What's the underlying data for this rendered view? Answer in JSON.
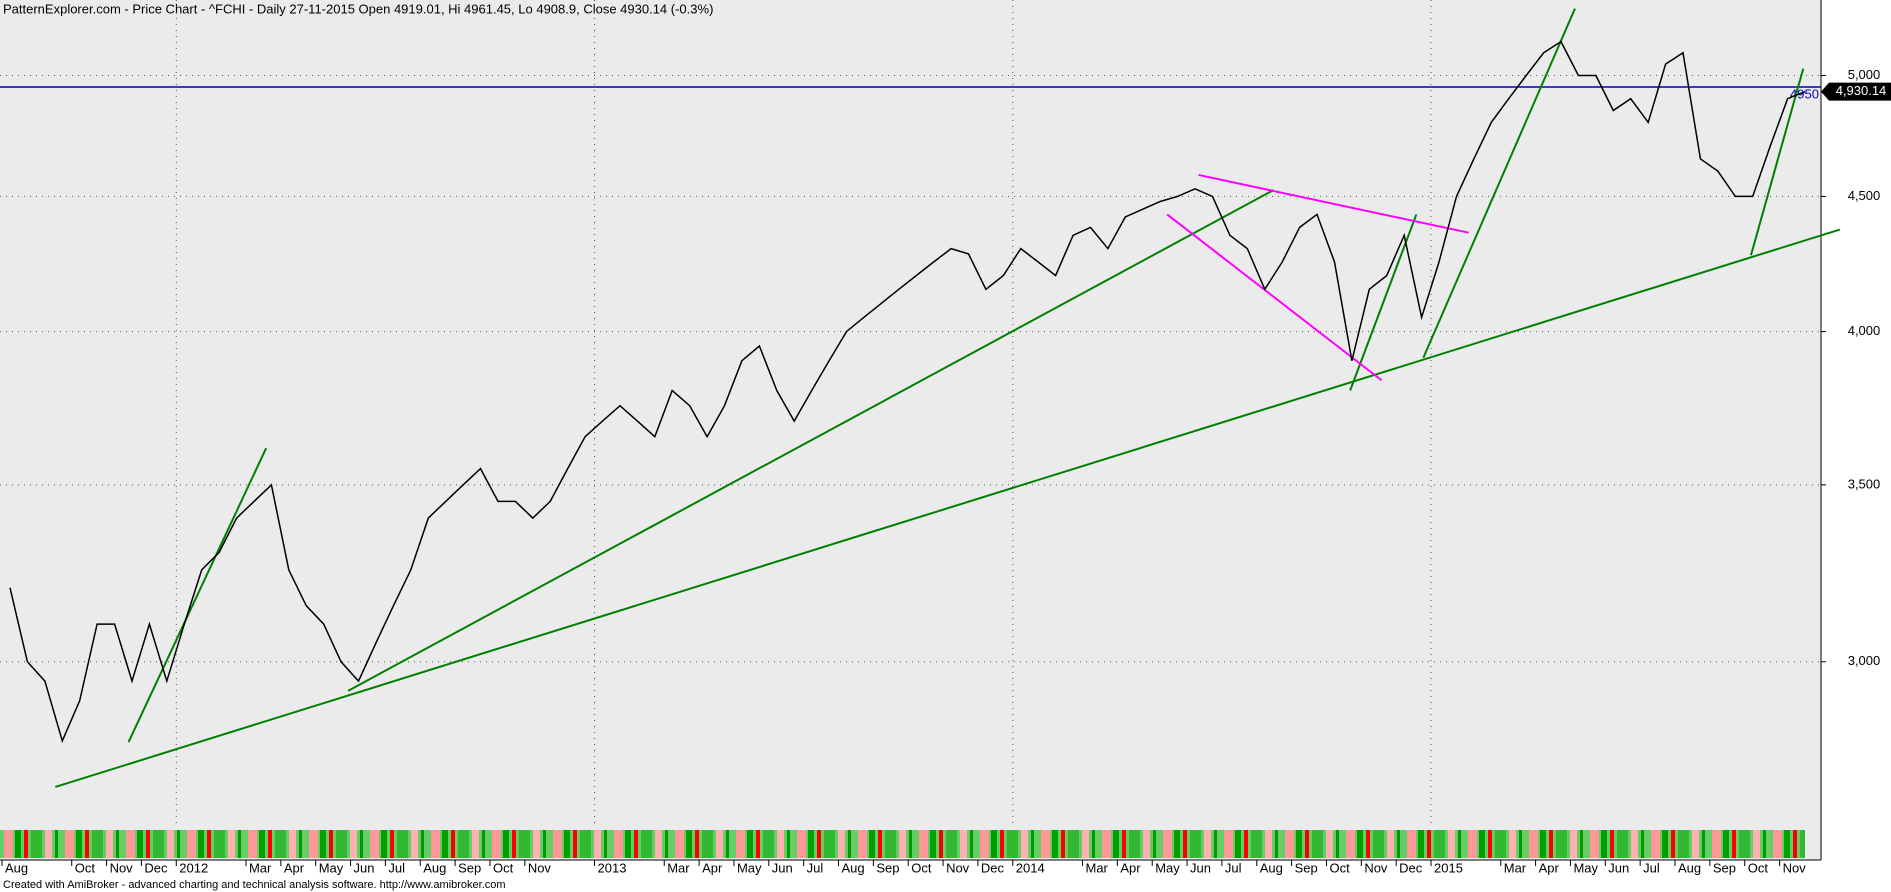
{
  "chart_data": {
    "type": "line",
    "title": "PatternExplorer.com - Price Chart - ^FCHI - Daily 27-11-2015 Open 4919.01, Hi 4961.45, Lo 4908.9, Close 4930.14 (-0.3%)",
    "footer": "Created with AmiBroker - advanced charting and technical analysis software. http://www.amibroker.com",
    "categories": [
      "Aug",
      null,
      null,
      null,
      "Oct",
      null,
      "Nov",
      null,
      "Dec",
      null,
      "2012",
      null,
      null,
      null,
      "Mar",
      null,
      "Apr",
      null,
      "May",
      null,
      "Jun",
      null,
      "Jul",
      null,
      "Aug",
      null,
      "Sep",
      null,
      "Oct",
      null,
      "Nov",
      null,
      null,
      null,
      "2013",
      null,
      null,
      null,
      "Mar",
      null,
      "Apr",
      null,
      "May",
      null,
      "Jun",
      null,
      "Jul",
      null,
      "Aug",
      null,
      "Sep",
      null,
      "Oct",
      null,
      "Nov",
      null,
      "Dec",
      null,
      "2014",
      null,
      null,
      null,
      "Mar",
      null,
      "Apr",
      null,
      "May",
      null,
      "Jun",
      null,
      "Jul",
      null,
      "Aug",
      null,
      "Sep",
      null,
      "Oct",
      null,
      "Nov",
      null,
      "Dec",
      null,
      "2015",
      null,
      null,
      null,
      "Mar",
      null,
      "Apr",
      null,
      "May",
      null,
      "Jun",
      null,
      "Jul",
      null,
      "Aug",
      null,
      "Sep",
      null,
      "Oct",
      null,
      "Nov",
      null
    ],
    "values": [
      3200,
      3000,
      2950,
      2800,
      2900,
      3100,
      3100,
      2950,
      3100,
      2950,
      3100,
      3250,
      3300,
      3400,
      3450,
      3500,
      3250,
      3150,
      3100,
      3000,
      2950,
      3050,
      3150,
      3250,
      3400,
      3450,
      3500,
      3550,
      3450,
      3450,
      3400,
      3450,
      3550,
      3650,
      3700,
      3750,
      3700,
      3650,
      3800,
      3750,
      3650,
      3750,
      3900,
      3950,
      3800,
      3700,
      3800,
      3900,
      4000,
      4050,
      4100,
      4150,
      4200,
      4250,
      4300,
      4280,
      4150,
      4200,
      4300,
      4250,
      4200,
      4350,
      4380,
      4300,
      4420,
      4450,
      4480,
      4500,
      4530,
      4500,
      4350,
      4300,
      4150,
      4250,
      4380,
      4430,
      4250,
      3900,
      4150,
      4200,
      4350,
      4050,
      4250,
      4500,
      4650,
      4800,
      4900,
      5000,
      5100,
      5150,
      5000,
      5000,
      4850,
      4900,
      4800,
      5050,
      5100,
      4650,
      4600,
      4500,
      4500,
      4700,
      4900,
      4930.14
    ],
    "color": "#000000",
    "log_scale": true,
    "grid": true,
    "ylim": [
      2600,
      5340
    ],
    "yticks": [
      {
        "value": 3000,
        "label": "3,000"
      },
      {
        "value": 3500,
        "label": "3,500"
      },
      {
        "value": 4000,
        "label": "4,000"
      },
      {
        "value": 4500,
        "label": "4,500"
      },
      {
        "value": 5000,
        "label": "5,000"
      }
    ],
    "price_marker": {
      "value": 4930.14,
      "label": "4,930.14"
    },
    "level_line": {
      "value": 4950,
      "label": "4950",
      "color": "#0000c0"
    },
    "trendlines": [
      {
        "color": "#008000",
        "x": [
          2.6,
          105
        ],
        "y": [
          2690,
          4372
        ]
      },
      {
        "color": "#008000",
        "x": [
          19.4,
          72.5
        ],
        "y": [
          2925,
          4525
        ]
      },
      {
        "color": "#008000",
        "x": [
          6.8,
          14.7
        ],
        "y": [
          2797,
          3614
        ]
      },
      {
        "color": "#008000",
        "x": [
          76.9,
          80.7
        ],
        "y": [
          3800,
          4430
        ]
      },
      {
        "color": "#008000",
        "x": [
          81.1,
          89.8
        ],
        "y": [
          3910,
          5300
        ]
      },
      {
        "color": "#008000",
        "x": [
          99.9,
          102.9
        ],
        "y": [
          4275,
          5030
        ]
      },
      {
        "color": "#ff00ff",
        "x": [
          68.2,
          83.7
        ],
        "y": [
          4585,
          4360
        ]
      },
      {
        "color": "#ff00ff",
        "x": [
          66.4,
          78.7
        ],
        "y": [
          4430,
          3834
        ]
      }
    ]
  }
}
